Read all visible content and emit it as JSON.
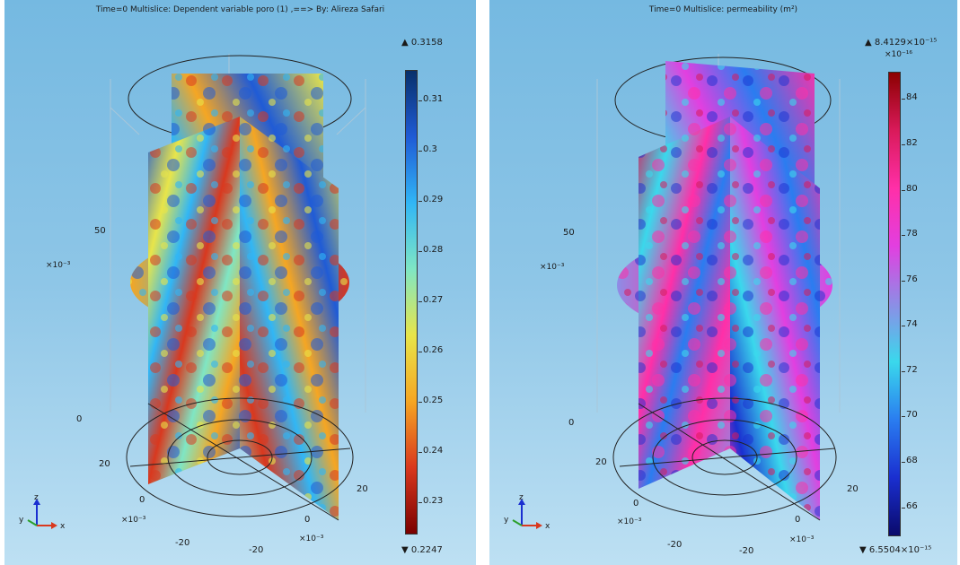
{
  "left": {
    "title": "Time=0   Multislice: Dependent variable poro (1) ,==> By: Alireza Safari",
    "colorbar": {
      "max_label": "▲ 0.3158",
      "min_label": "▼ 0.2247",
      "ticks": [
        "0.31",
        "0.3",
        "0.29",
        "0.28",
        "0.27",
        "0.26",
        "0.25",
        "0.24",
        "0.23"
      ],
      "colors": [
        "#08306b",
        "#1f5bd6",
        "#31b6f5",
        "#7fe6c4",
        "#e8e54a",
        "#f5a623",
        "#d9381e",
        "#7a0000"
      ]
    },
    "axis_labels": {
      "z_50": "50",
      "z_scale": "×10⁻³",
      "z_0": "0",
      "x_20": "20",
      "x_0": "0",
      "x_scale": "×10⁻³",
      "x_neg20": "-20",
      "y_20": "20",
      "y_0": "0",
      "y_scale": "×10⁻³",
      "y_neg20": "-20"
    },
    "triad": {
      "z": "z",
      "y": "y",
      "x": "x"
    }
  },
  "right": {
    "title": "Time=0   Multislice: permeability (m²)",
    "colorbar": {
      "max_label": "▲ 8.4129×10⁻¹⁵",
      "exp_label": "×10⁻¹⁶",
      "min_label": "▼ 6.5504×10⁻¹⁵",
      "ticks": [
        "84",
        "82",
        "80",
        "78",
        "76",
        "74",
        "72",
        "70",
        "68",
        "66"
      ],
      "colors": [
        "#8b0000",
        "#d91a5a",
        "#ff2fa8",
        "#e23fe0",
        "#8d8de6",
        "#3ad8ec",
        "#2a7df0",
        "#1a2fd0",
        "#0a0a6b"
      ]
    },
    "axis_labels": {
      "z_50": "50",
      "z_scale": "×10⁻³",
      "z_0": "0",
      "x_20": "20",
      "x_0": "0",
      "x_scale": "×10⁻³",
      "x_neg20": "-20",
      "y_20": "20",
      "y_0": "0",
      "y_scale": "×10⁻³",
      "y_neg20": "-20"
    },
    "triad": {
      "z": "z",
      "y": "y",
      "x": "x"
    }
  }
}
